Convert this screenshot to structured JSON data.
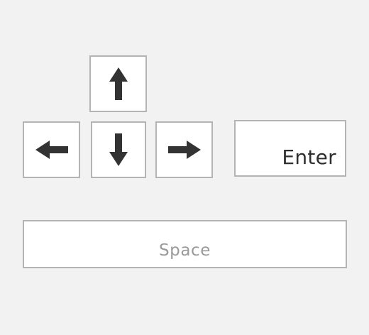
{
  "keys": {
    "up": {
      "icon": "arrow-up-icon"
    },
    "left": {
      "icon": "arrow-left-icon"
    },
    "down": {
      "icon": "arrow-down-icon"
    },
    "right": {
      "icon": "arrow-right-icon"
    },
    "enter": {
      "label": "Enter"
    },
    "space": {
      "label": "Space"
    }
  },
  "colors": {
    "background": "#f2f2f2",
    "key_fill": "#ffffff",
    "key_border": "#b4b4b4",
    "arrow": "#333333",
    "enter_text": "#2e2e2e",
    "space_text": "#9a9a9a"
  }
}
